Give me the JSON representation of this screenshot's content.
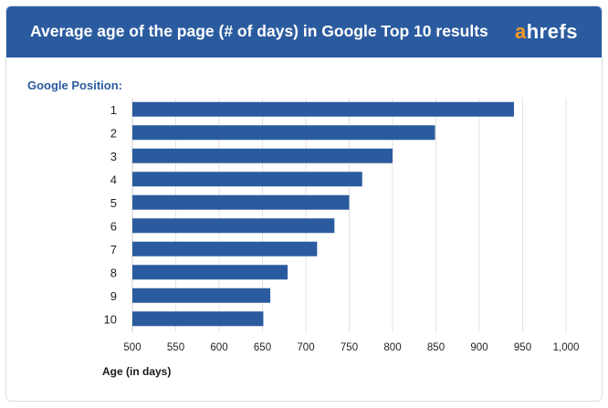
{
  "header": {
    "title": "Average age of the page (# of days) in Google Top 10 results",
    "logo_a": "a",
    "logo_rest": "hrefs"
  },
  "colors": {
    "header_bg": "#2b5b9f",
    "bar": "#2b5b9f",
    "logo_accent": "#f59a23",
    "axis_label": "#2b5b9f"
  },
  "chart_data": {
    "type": "bar",
    "orientation": "horizontal",
    "title": "Average age of the page (# of days) in Google Top 10 results",
    "ylabel": "Google Position:",
    "xlabel": "Age (in days)",
    "categories": [
      "1",
      "2",
      "3",
      "4",
      "5",
      "6",
      "7",
      "8",
      "9",
      "10"
    ],
    "values": [
      940,
      849,
      800,
      765,
      750,
      733,
      713,
      679,
      659,
      651
    ],
    "xlim": [
      500,
      1000
    ],
    "xticks": [
      500,
      550,
      600,
      650,
      700,
      750,
      800,
      850,
      900,
      950,
      1000
    ],
    "xtick_labels": [
      "500",
      "550",
      "600",
      "650",
      "700",
      "750",
      "800",
      "850",
      "900",
      "950",
      "1,000"
    ],
    "grid": "vertical",
    "legend": "none"
  }
}
